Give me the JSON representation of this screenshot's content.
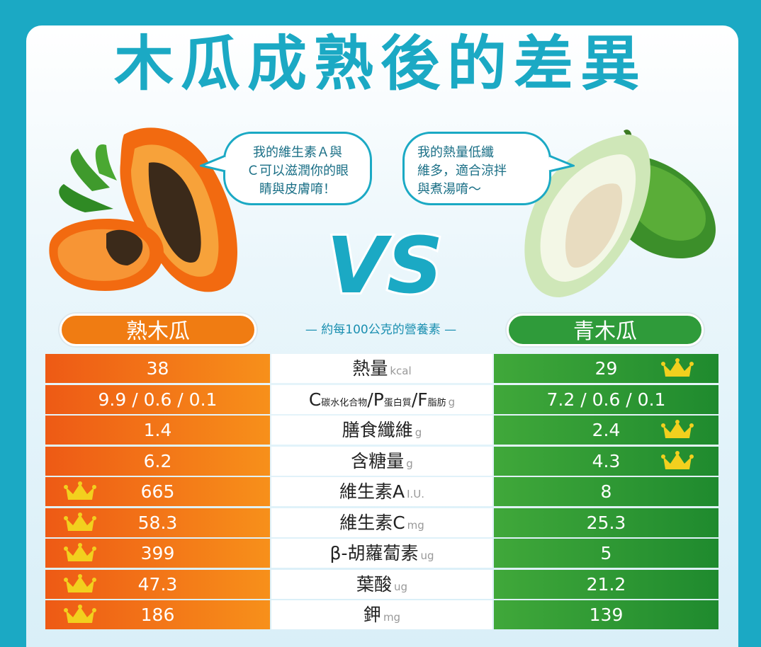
{
  "title": "木瓜成熟後的差異",
  "bubbles": {
    "ripe": [
      "我的維生素Ａ與",
      "Ｃ可以滋潤你的眼",
      "睛與皮膚唷！"
    ],
    "green": [
      "我的熱量低纖",
      "維多，適合涼拌",
      "與煮湯唷～"
    ]
  },
  "vs_label": "VS",
  "headers": {
    "ripe": "熟木瓜",
    "green": "青木瓜",
    "subtitle": "— 約每100公克的營養素 —"
  },
  "colors": {
    "teal": "#1ba9c4",
    "ripe_dark": "#ee5a15",
    "ripe_light": "#f7901a",
    "green_dark": "#1f8a2e",
    "green_light": "#40a83a",
    "crown": "#f2d01e"
  },
  "rows": [
    {
      "ripe": "38",
      "name": "熱量",
      "unit": "kcal",
      "green": "29",
      "crown": "green"
    },
    {
      "ripe": "9.9 / 0.6 / 0.1",
      "name_parts": [
        "C",
        "碳水化合物",
        "/P",
        "蛋白質",
        "/F",
        "脂肪"
      ],
      "unit": "g",
      "green": "7.2 / 0.6 / 0.1",
      "crown": "none"
    },
    {
      "ripe": "1.4",
      "name": "膳食纖維",
      "unit": "g",
      "green": "2.4",
      "crown": "green"
    },
    {
      "ripe": "6.2",
      "name": "含糖量",
      "unit": "g",
      "green": "4.3",
      "crown": "green"
    },
    {
      "ripe": "665",
      "name": "維生素A",
      "unit": "I.U.",
      "green": "8",
      "crown": "ripe"
    },
    {
      "ripe": "58.3",
      "name": "維生素C",
      "unit": "mg",
      "green": "25.3",
      "crown": "ripe"
    },
    {
      "ripe": "399",
      "name": "β-胡蘿蔔素",
      "unit": "ug",
      "green": "5",
      "crown": "ripe"
    },
    {
      "ripe": "47.3",
      "name": "葉酸",
      "unit": "ug",
      "green": "21.2",
      "crown": "ripe"
    },
    {
      "ripe": "186",
      "name": "鉀",
      "unit": "mg",
      "green": "139",
      "crown": "ripe"
    }
  ]
}
